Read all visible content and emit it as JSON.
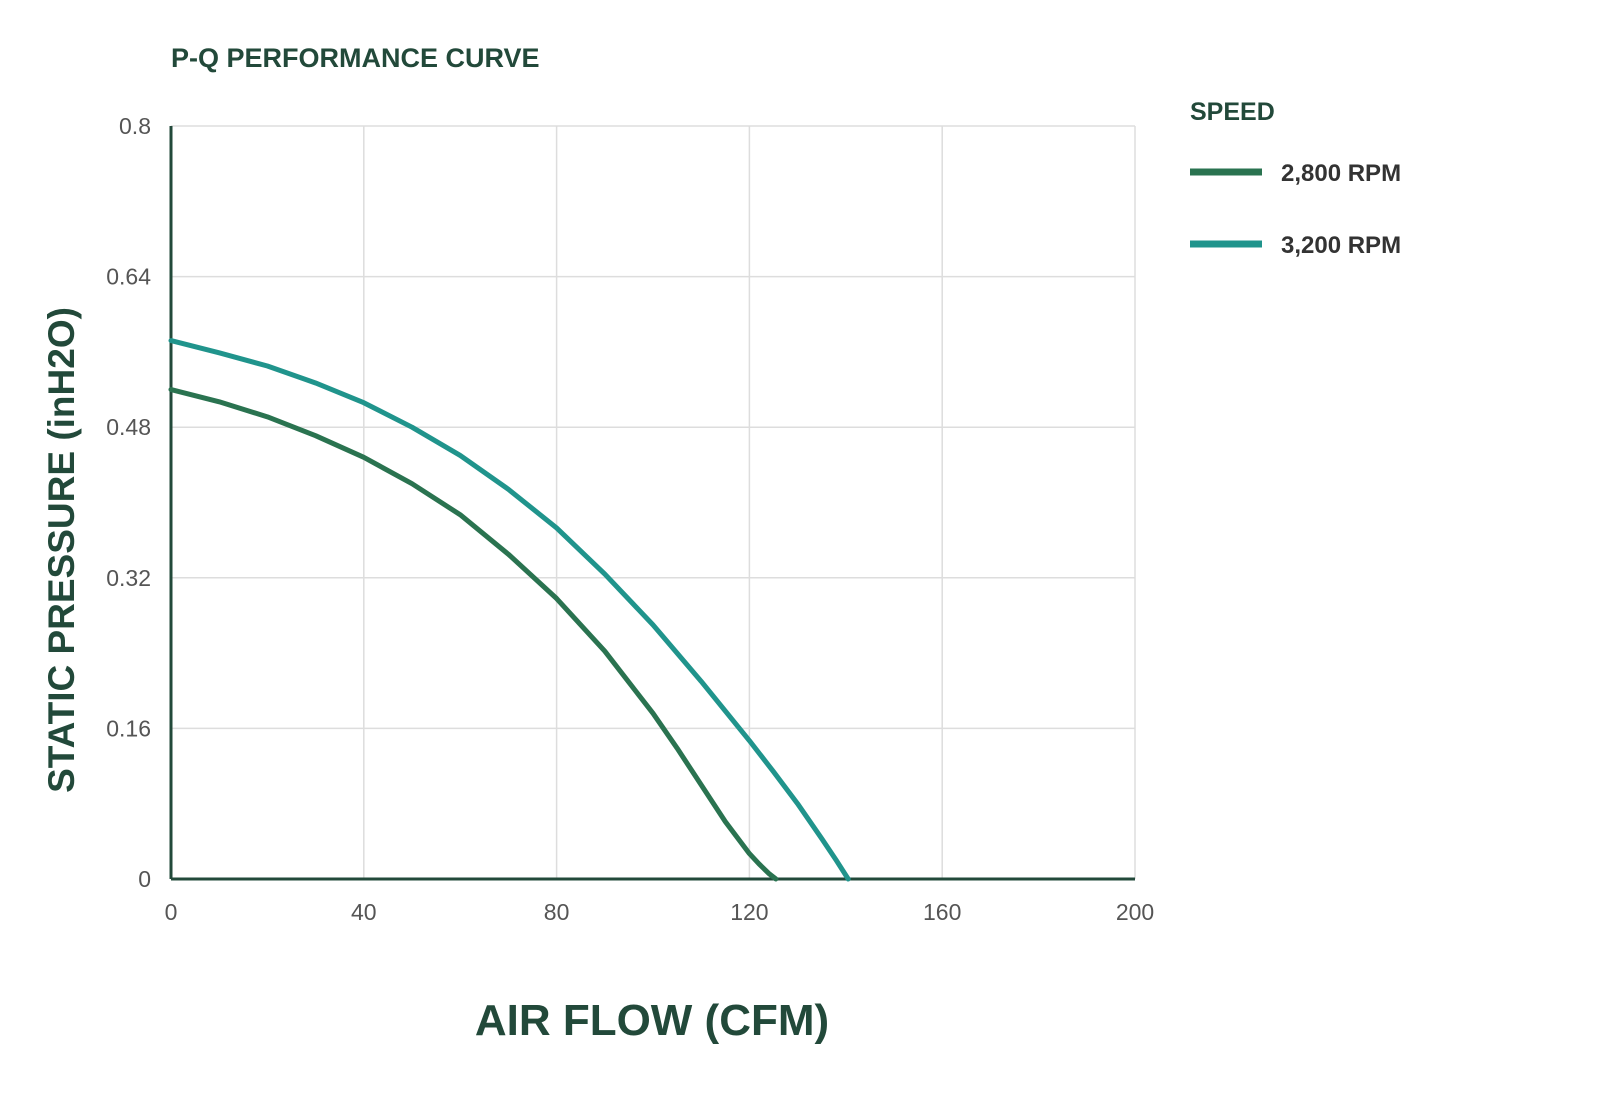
{
  "chart_data": {
    "type": "line",
    "title": "P-Q PERFORMANCE CURVE",
    "xlabel": "AIR FLOW (CFM)",
    "ylabel": "STATIC PRESSURE (inH2O)",
    "xlim": [
      0,
      200
    ],
    "ylim": [
      0,
      0.8
    ],
    "xticks": [
      0,
      40,
      80,
      120,
      160,
      200
    ],
    "yticks": [
      0,
      0.16,
      0.32,
      0.48,
      0.64,
      0.8
    ],
    "xtick_labels": [
      "0",
      "40",
      "80",
      "120",
      "160",
      "200"
    ],
    "ytick_labels": [
      "0",
      "0.16",
      "0.32",
      "0.48",
      "0.64",
      "0.8"
    ],
    "grid": true,
    "legend_title": "SPEED",
    "legend_position": "right",
    "series": [
      {
        "name": "2,800 RPM",
        "color": "#2a7350",
        "x": [
          0,
          10,
          20,
          30,
          40,
          50,
          60,
          70,
          80,
          90,
          100,
          105,
          110,
          115,
          120,
          122,
          124,
          125.5
        ],
        "y": [
          0.52,
          0.507,
          0.491,
          0.471,
          0.448,
          0.42,
          0.387,
          0.345,
          0.298,
          0.242,
          0.176,
          0.139,
          0.1,
          0.061,
          0.027,
          0.016,
          0.006,
          0
        ]
      },
      {
        "name": "3,200 RPM",
        "color": "#20948c",
        "x": [
          0,
          10,
          20,
          30,
          40,
          50,
          60,
          70,
          80,
          90,
          100,
          110,
          120,
          125,
          130,
          135,
          138,
          140.5
        ],
        "y": [
          0.572,
          0.559,
          0.545,
          0.527,
          0.506,
          0.48,
          0.45,
          0.414,
          0.373,
          0.324,
          0.27,
          0.21,
          0.147,
          0.114,
          0.08,
          0.043,
          0.02,
          0
        ]
      }
    ]
  }
}
